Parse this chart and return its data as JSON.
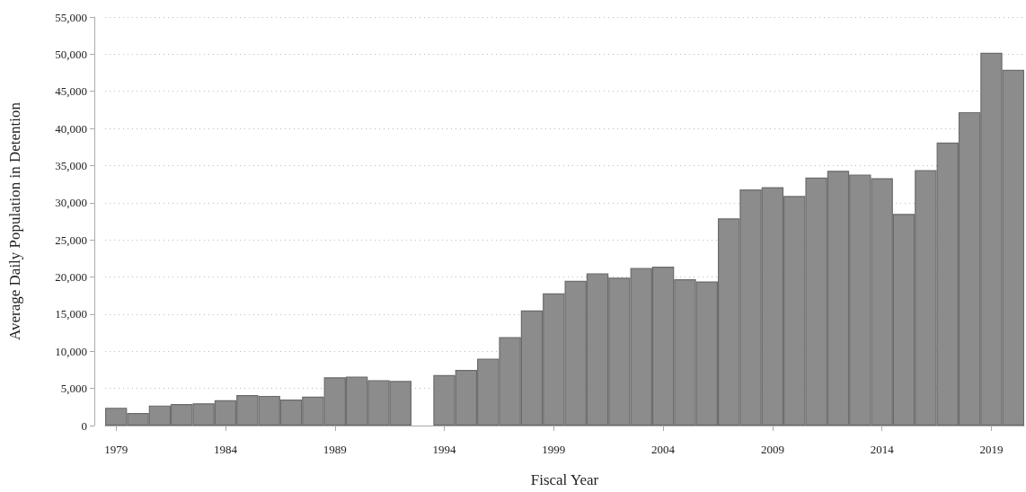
{
  "chart_data": {
    "type": "bar",
    "xlabel": "Fiscal Year",
    "ylabel": "Average Daily Population in Detention",
    "categories": [
      "1979",
      null,
      null,
      null,
      null,
      "1984",
      null,
      null,
      null,
      null,
      "1989",
      null,
      null,
      null,
      null,
      "1994",
      null,
      null,
      null,
      null,
      "1999",
      null,
      null,
      null,
      null,
      "2004",
      null,
      null,
      null,
      null,
      "2009",
      null,
      null,
      null,
      null,
      "2014",
      null,
      null,
      null,
      null,
      "2019",
      null
    ],
    "values": [
      2400,
      1700,
      2700,
      2900,
      3000,
      3400,
      4100,
      4000,
      3500,
      3900,
      6500,
      6600,
      6100,
      6000,
      null,
      6800,
      7500,
      9000,
      11900,
      15500,
      17800,
      19500,
      20500,
      19900,
      21200,
      21400,
      19700,
      19400,
      27900,
      31800,
      32100,
      30900,
      33400,
      34300,
      33800,
      33300,
      28500,
      34400,
      38100,
      42200,
      50200,
      47900
    ],
    "color": "#8c8c8c",
    "ylim": [
      0,
      55000
    ],
    "yticks": [
      {
        "value": 0,
        "label": "0"
      },
      {
        "value": 5000,
        "label": "5,000"
      },
      {
        "value": 10000,
        "label": "10,000"
      },
      {
        "value": 15000,
        "label": "15,000"
      },
      {
        "value": 20000,
        "label": "20,000"
      },
      {
        "value": 25000,
        "label": "25,000"
      },
      {
        "value": 30000,
        "label": "30,000"
      },
      {
        "value": 35000,
        "label": "35,000"
      },
      {
        "value": 40000,
        "label": "40,000"
      },
      {
        "value": 45000,
        "label": "45,000"
      },
      {
        "value": 50000,
        "label": "50,000"
      },
      {
        "value": 55000,
        "label": "55,000"
      }
    ],
    "grid": "y"
  }
}
